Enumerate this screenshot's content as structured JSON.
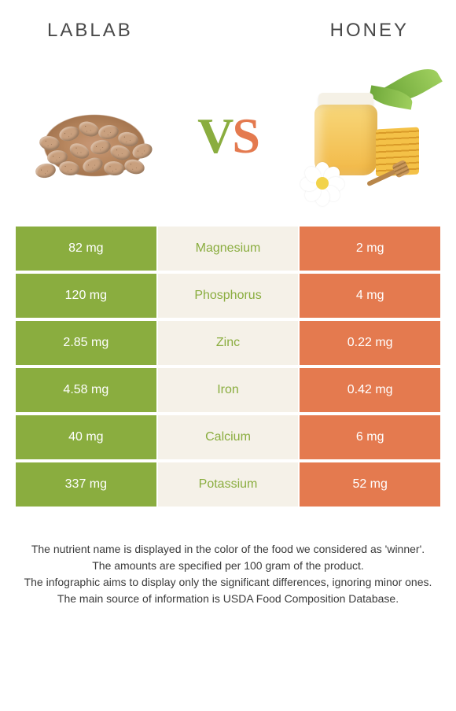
{
  "header": {
    "left_title": "LABLAB",
    "right_title": "HONEY"
  },
  "vs": {
    "v": "V",
    "s": "S"
  },
  "colors": {
    "left": "#8aad3f",
    "mid_bg": "#f5f1e8",
    "right": "#e47a4f",
    "text_dark": "#4a4a4a"
  },
  "table": {
    "rows": [
      {
        "left": "82 mg",
        "label": "Magnesium",
        "right": "2 mg"
      },
      {
        "left": "120 mg",
        "label": "Phosphorus",
        "right": "4 mg"
      },
      {
        "left": "2.85 mg",
        "label": "Zinc",
        "right": "0.22 mg"
      },
      {
        "left": "4.58 mg",
        "label": "Iron",
        "right": "0.42 mg"
      },
      {
        "left": "40 mg",
        "label": "Calcium",
        "right": "6 mg"
      },
      {
        "left": "337 mg",
        "label": "Potassium",
        "right": "52 mg"
      }
    ]
  },
  "footer": {
    "line1": "The nutrient name is displayed in the color of the food we considered as 'winner'.",
    "line2": "The amounts are specified per 100 gram of the product.",
    "line3": "The infographic aims to display only the significant differences, ignoring minor ones.",
    "line4": "The main source of information is USDA Food Composition Database."
  },
  "typography": {
    "header_fontsize": 24,
    "header_letterspacing": 3,
    "vs_fontsize": 64,
    "cell_fontsize": 16,
    "footer_fontsize": 14
  }
}
